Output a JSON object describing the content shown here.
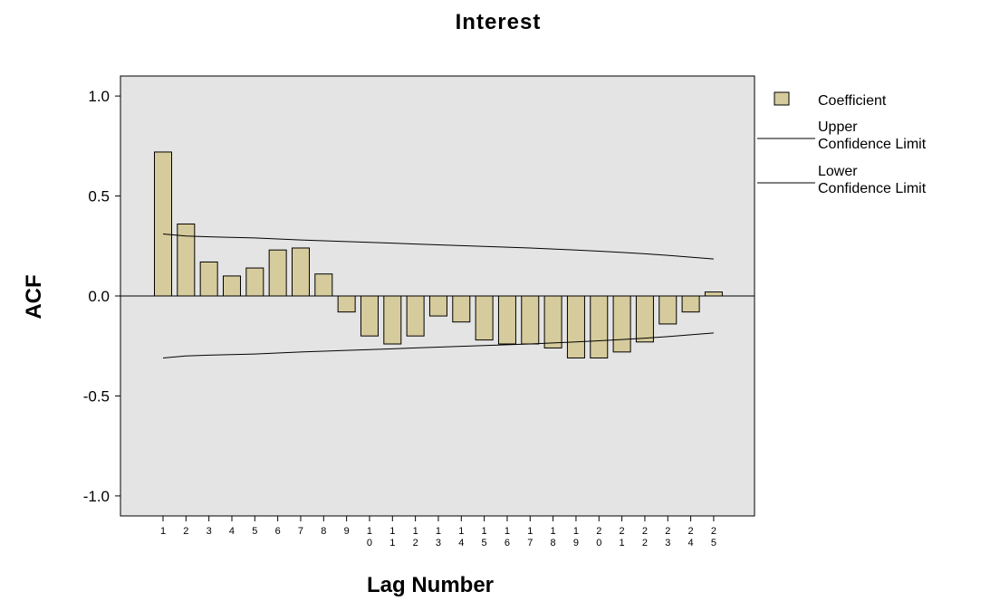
{
  "chart_data": {
    "type": "bar",
    "title": "Interest",
    "xlabel": "Lag Number",
    "ylabel": "ACF",
    "ylim": [
      -1.1,
      1.1
    ],
    "yticks": [
      "1.0",
      "0.5",
      "0.0",
      "-0.5",
      "-1.0"
    ],
    "ytick_values": [
      1.0,
      0.5,
      0.0,
      -0.5,
      -1.0
    ],
    "categories": [
      "1",
      "2",
      "3",
      "4",
      "5",
      "6",
      "7",
      "8",
      "9",
      "10",
      "11",
      "12",
      "13",
      "14",
      "15",
      "16",
      "17",
      "18",
      "19",
      "20",
      "21",
      "22",
      "23",
      "24",
      "25"
    ],
    "category_lines": [
      [
        "1"
      ],
      [
        "2"
      ],
      [
        "3"
      ],
      [
        "4"
      ],
      [
        "5"
      ],
      [
        "6"
      ],
      [
        "7"
      ],
      [
        "8"
      ],
      [
        "9"
      ],
      [
        "1",
        "0"
      ],
      [
        "1",
        "1"
      ],
      [
        "1",
        "2"
      ],
      [
        "1",
        "3"
      ],
      [
        "1",
        "4"
      ],
      [
        "1",
        "5"
      ],
      [
        "1",
        "6"
      ],
      [
        "1",
        "7"
      ],
      [
        "1",
        "8"
      ],
      [
        "1",
        "9"
      ],
      [
        "2",
        "0"
      ],
      [
        "2",
        "1"
      ],
      [
        "2",
        "2"
      ],
      [
        "2",
        "3"
      ],
      [
        "2",
        "4"
      ],
      [
        "2",
        "5"
      ]
    ],
    "series": [
      {
        "name": "Coefficient",
        "type": "bar",
        "values": [
          0.72,
          0.36,
          0.17,
          0.1,
          0.14,
          0.23,
          0.24,
          0.11,
          -0.08,
          -0.2,
          -0.24,
          -0.2,
          -0.1,
          -0.13,
          -0.22,
          -0.24,
          -0.24,
          -0.26,
          -0.31,
          -0.31,
          -0.28,
          -0.23,
          -0.14,
          -0.08,
          0.02
        ]
      },
      {
        "name": "Upper Confidence Limit",
        "type": "line",
        "values": [
          0.31,
          0.3,
          0.296,
          0.293,
          0.29,
          0.285,
          0.28,
          0.276,
          0.272,
          0.268,
          0.264,
          0.26,
          0.256,
          0.252,
          0.248,
          0.244,
          0.24,
          0.235,
          0.23,
          0.224,
          0.218,
          0.211,
          0.203,
          0.194,
          0.185
        ]
      },
      {
        "name": "Lower Confidence Limit",
        "type": "line",
        "values": [
          -0.31,
          -0.3,
          -0.296,
          -0.293,
          -0.29,
          -0.285,
          -0.28,
          -0.276,
          -0.272,
          -0.268,
          -0.264,
          -0.26,
          -0.256,
          -0.252,
          -0.248,
          -0.244,
          -0.24,
          -0.235,
          -0.23,
          -0.224,
          -0.218,
          -0.211,
          -0.203,
          -0.194,
          -0.185
        ]
      }
    ],
    "legend": {
      "placement": "right",
      "entries": [
        [
          "Coefficient"
        ],
        [
          "Upper",
          "Confidence Limit"
        ],
        [
          "Lower",
          "Confidence Limit"
        ]
      ]
    },
    "colors": {
      "bar_fill": "#d6cb9c",
      "bar_stroke": "#000000",
      "plot_background": "#e4e4e4",
      "line": "#000000"
    },
    "grid": false
  }
}
